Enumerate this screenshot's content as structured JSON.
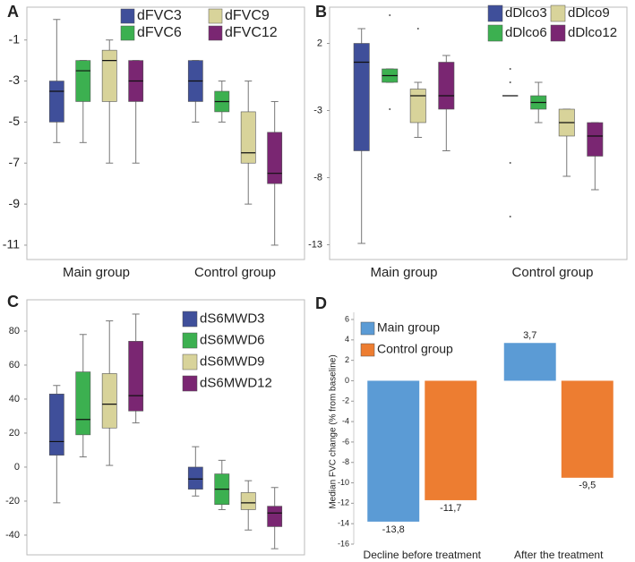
{
  "chart_data": [
    {
      "type": "box",
      "label": "A",
      "categories": [
        "Main group",
        "Control group"
      ],
      "ylim": [
        -11.7,
        0.6
      ],
      "yticks": [
        -1,
        -3,
        -5,
        -7,
        -9,
        -11
      ],
      "legend": "top-right",
      "series": [
        {
          "name": "dFVC3",
          "color": "#3f4f9a",
          "min": [
            -6,
            -5
          ],
          "q1": [
            -5,
            -4
          ],
          "median": [
            -3.5,
            -3
          ],
          "q3": [
            -3,
            -2
          ],
          "max": [
            0,
            -2
          ]
        },
        {
          "name": "dFVC6",
          "color": "#3cb050",
          "min": [
            -6,
            -5
          ],
          "q1": [
            -4,
            -4.5
          ],
          "median": [
            -2.5,
            -4
          ],
          "q3": [
            -2,
            -3.5
          ],
          "max": [
            -2,
            -3
          ]
        },
        {
          "name": "dFVC9",
          "color": "#d8d39a",
          "min": [
            -7,
            -9
          ],
          "q1": [
            -4,
            -7
          ],
          "median": [
            -2,
            -6.5
          ],
          "q3": [
            -1.5,
            -4.5
          ],
          "max": [
            -1,
            -3
          ]
        },
        {
          "name": "dFVC12",
          "color": "#7a2672",
          "min": [
            -7,
            -11
          ],
          "q1": [
            -4,
            -8
          ],
          "median": [
            -3,
            -7.5
          ],
          "q3": [
            -2,
            -5.5
          ],
          "max": [
            -2,
            -4
          ]
        }
      ]
    },
    {
      "type": "box",
      "label": "B",
      "categories": [
        "Main group",
        "Control group"
      ],
      "ylim": [
        -14.1,
        4.7
      ],
      "yticks": [
        2,
        -3,
        -8,
        -13
      ],
      "legend": "top-right",
      "series": [
        {
          "name": "dDlco3",
          "color": "#3f4f9a",
          "min": [
            -12.9,
            -1.9
          ],
          "q1": [
            -6,
            -1.9
          ],
          "median": [
            0.6,
            -1.9
          ],
          "q3": [
            2,
            -1.9
          ],
          "max": [
            3.1,
            -1.9
          ],
          "outliers": [
            [],
            [
              0.1,
              -0.9,
              -6.9,
              -10.9
            ]
          ]
        },
        {
          "name": "dDlco6",
          "color": "#3cb050",
          "min": [
            -0.9,
            -3.9
          ],
          "q1": [
            -0.9,
            -2.9
          ],
          "median": [
            -0.4,
            -2.4
          ],
          "q3": [
            0.1,
            -1.9
          ],
          "max": [
            0.1,
            -0.9
          ],
          "outliers": [
            [
              4.1,
              -2.9
            ],
            []
          ]
        },
        {
          "name": "dDlco9",
          "color": "#d8d39a",
          "min": [
            -5,
            -7.9
          ],
          "q1": [
            -3.9,
            -4.9
          ],
          "median": [
            -1.9,
            -3.9
          ],
          "q3": [
            -1.4,
            -2.9
          ],
          "max": [
            -0.9,
            -2.9
          ],
          "outliers": [
            [
              3.1
            ],
            []
          ]
        },
        {
          "name": "dDlco12",
          "color": "#7a2672",
          "min": [
            -6,
            -8.9
          ],
          "q1": [
            -2.9,
            -6.4
          ],
          "median": [
            -1.9,
            -4.9
          ],
          "q3": [
            0.6,
            -3.9
          ],
          "max": [
            1.1,
            -3.9
          ],
          "outliers": [
            [],
            []
          ]
        }
      ]
    },
    {
      "type": "box",
      "label": "C",
      "categories": [
        null,
        null
      ],
      "ylim": [
        -51.6,
        98.4
      ],
      "yticks": [
        80,
        60,
        40,
        20,
        0,
        -20,
        -40
      ],
      "legend": "top-right",
      "series": [
        {
          "name": "dS6MWD3",
          "color": "#3f4f9a",
          "min": [
            -21,
            -17
          ],
          "q1": [
            7,
            -13
          ],
          "median": [
            15,
            -7
          ],
          "q3": [
            43,
            0
          ],
          "max": [
            48,
            12
          ]
        },
        {
          "name": "dS6MWD6",
          "color": "#3cb050",
          "min": [
            6,
            -25
          ],
          "q1": [
            19,
            -22
          ],
          "median": [
            28,
            -13
          ],
          "q3": [
            56,
            -4
          ],
          "max": [
            78,
            4
          ]
        },
        {
          "name": "dS6MWD9",
          "color": "#d8d39a",
          "min": [
            1,
            -37
          ],
          "q1": [
            23,
            -25
          ],
          "median": [
            37,
            -21
          ],
          "q3": [
            55,
            -15
          ],
          "max": [
            86,
            -8
          ]
        },
        {
          "name": "dS6MWD12",
          "color": "#7a2672",
          "min": [
            26,
            -48
          ],
          "q1": [
            33,
            -35
          ],
          "median": [
            42,
            -27
          ],
          "q3": [
            74,
            -23
          ],
          "max": [
            90,
            -12
          ]
        }
      ]
    },
    {
      "type": "bar",
      "label": "D",
      "y_label": "Median FVC change  (% from baseline)",
      "categories": [
        "Decline before treatment",
        "After the treatment"
      ],
      "ylim": [
        -16,
        6
      ],
      "yticks": [
        6,
        4,
        2,
        0,
        -2,
        -4,
        -6,
        -8,
        -10,
        -12,
        -14,
        -16
      ],
      "legend": "top-left",
      "series": [
        {
          "name": "Main group",
          "color": "#5b9bd5",
          "values": [
            -13.8,
            3.7
          ],
          "value_labels": [
            "-13,8",
            "3,7"
          ]
        },
        {
          "name": "Control group",
          "color": "#ed7d31",
          "values": [
            -11.7,
            -9.5
          ],
          "value_labels": [
            "-11,7",
            "-9,5"
          ]
        }
      ]
    }
  ]
}
